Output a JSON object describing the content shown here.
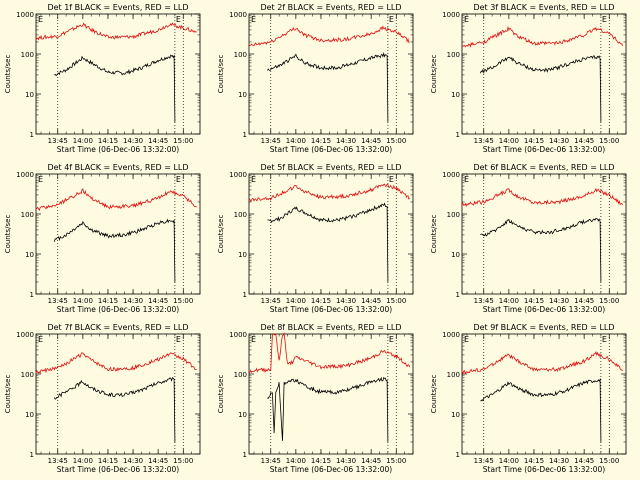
{
  "colors": {
    "background": "#fffbe0",
    "events": "#000000",
    "lld": "#dd1111",
    "axes": "#000000"
  },
  "chart_data": [
    {
      "type": "line",
      "title": "Det 1f BLACK = Events, RED = LLD",
      "xlabel": "Start Time (06-Dec-06 13:32:00)",
      "ylabel": "Counts/sec",
      "x_ticks": [
        "13:45",
        "14:00",
        "14:15",
        "14:30",
        "14:45",
        "15:00"
      ],
      "y_ticks": [
        "1",
        "10",
        "100",
        "1000"
      ],
      "y_scale": "log",
      "ylim": [
        1,
        1000
      ],
      "vlines": [
        "13:45",
        "14:55",
        "15:00"
      ],
      "markers": [
        "E",
        "E"
      ],
      "series": [
        {
          "name": "BLACK = Events",
          "color": "#000000",
          "x": [
            "13:43",
            "13:50",
            "14:00",
            "14:05",
            "14:15",
            "14:25",
            "14:35",
            "14:45",
            "14:53",
            "14:55",
            "14:55"
          ],
          "y": [
            30,
            40,
            80,
            60,
            35,
            33,
            45,
            70,
            90,
            80,
            2
          ]
        },
        {
          "name": "RED = LLD",
          "color": "#dd1111",
          "x": [
            "13:32",
            "13:45",
            "14:00",
            "14:05",
            "14:15",
            "14:30",
            "14:45",
            "14:52",
            "15:00",
            "15:08"
          ],
          "y": [
            250,
            280,
            550,
            400,
            260,
            270,
            400,
            560,
            450,
            350
          ]
        }
      ]
    },
    {
      "type": "line",
      "title": "Det 2f BLACK = Events, RED = LLD",
      "xlabel": "Start Time (06-Dec-06 13:32:00)",
      "ylabel": "Counts/sec",
      "x_ticks": [
        "13:45",
        "14:00",
        "14:15",
        "14:30",
        "14:45",
        "15:00"
      ],
      "y_ticks": [
        "1",
        "10",
        "100",
        "1000"
      ],
      "y_scale": "log",
      "ylim": [
        1,
        1000
      ],
      "vlines": [
        "13:45",
        "14:55",
        "15:00"
      ],
      "markers": [
        "E",
        "E"
      ],
      "series": [
        {
          "name": "BLACK = Events",
          "color": "#000000",
          "x": [
            "13:43",
            "13:50",
            "14:00",
            "14:05",
            "14:15",
            "14:25",
            "14:35",
            "14:45",
            "14:53",
            "14:55",
            "14:55"
          ],
          "y": [
            40,
            50,
            90,
            60,
            45,
            45,
            60,
            80,
            95,
            90,
            2
          ]
        },
        {
          "name": "RED = LLD",
          "color": "#dd1111",
          "x": [
            "13:32",
            "13:45",
            "14:00",
            "14:05",
            "14:15",
            "14:30",
            "14:45",
            "14:52",
            "15:00",
            "15:08"
          ],
          "y": [
            160,
            200,
            450,
            300,
            220,
            230,
            320,
            450,
            350,
            200
          ]
        }
      ]
    },
    {
      "type": "line",
      "title": "Det 3f BLACK = Events, RED = LLD",
      "xlabel": "Start Time (06-Dec-06 13:32:00)",
      "ylabel": "Counts/sec",
      "x_ticks": [
        "13:45",
        "14:00",
        "14:15",
        "14:30",
        "14:45",
        "15:00"
      ],
      "y_ticks": [
        "1",
        "10",
        "100",
        "1000"
      ],
      "y_scale": "log",
      "ylim": [
        1,
        1000
      ],
      "vlines": [
        "13:45",
        "14:55",
        "15:00"
      ],
      "markers": [
        "E",
        "E"
      ],
      "series": [
        {
          "name": "BLACK = Events",
          "color": "#000000",
          "x": [
            "13:43",
            "13:50",
            "14:00",
            "14:05",
            "14:15",
            "14:25",
            "14:35",
            "14:45",
            "14:53",
            "14:55",
            "14:55"
          ],
          "y": [
            35,
            45,
            85,
            60,
            40,
            40,
            55,
            75,
            85,
            80,
            2
          ]
        },
        {
          "name": "RED = LLD",
          "color": "#dd1111",
          "x": [
            "13:32",
            "13:45",
            "14:00",
            "14:05",
            "14:15",
            "14:30",
            "14:45",
            "14:52",
            "15:00",
            "15:08"
          ],
          "y": [
            150,
            200,
            430,
            280,
            180,
            190,
            300,
            440,
            330,
            160
          ]
        }
      ]
    },
    {
      "type": "line",
      "title": "Det 4f BLACK = Events, RED = LLD",
      "xlabel": "Start Time (06-Dec-06 13:32:00)",
      "ylabel": "Counts/sec",
      "x_ticks": [
        "13:45",
        "14:00",
        "14:15",
        "14:30",
        "14:45",
        "15:00"
      ],
      "y_ticks": [
        "1",
        "10",
        "100",
        "1000"
      ],
      "y_scale": "log",
      "ylim": [
        1,
        1000
      ],
      "vlines": [
        "13:45",
        "14:55",
        "15:00"
      ],
      "markers": [
        "E",
        "E"
      ],
      "series": [
        {
          "name": "BLACK = Events",
          "color": "#000000",
          "x": [
            "13:43",
            "13:50",
            "14:00",
            "14:05",
            "14:15",
            "14:25",
            "14:35",
            "14:45",
            "14:53",
            "14:55",
            "14:55"
          ],
          "y": [
            22,
            30,
            60,
            40,
            28,
            30,
            40,
            60,
            70,
            65,
            2
          ]
        },
        {
          "name": "RED = LLD",
          "color": "#dd1111",
          "x": [
            "13:32",
            "13:45",
            "14:00",
            "14:05",
            "14:15",
            "14:30",
            "14:45",
            "14:52",
            "15:00",
            "15:08"
          ],
          "y": [
            130,
            170,
            380,
            250,
            150,
            160,
            250,
            370,
            280,
            150
          ]
        }
      ]
    },
    {
      "type": "line",
      "title": "Det 5f BLACK = Events, RED = LLD",
      "xlabel": "Start Time (06-Dec-06 13:32:00)",
      "ylabel": "Counts/sec",
      "x_ticks": [
        "13:45",
        "14:00",
        "14:15",
        "14:30",
        "14:45",
        "15:00"
      ],
      "y_ticks": [
        "1",
        "10",
        "100",
        "1000"
      ],
      "y_scale": "log",
      "ylim": [
        1,
        1000
      ],
      "vlines": [
        "13:45",
        "14:55",
        "15:00"
      ],
      "markers": [
        "E",
        "E"
      ],
      "series": [
        {
          "name": "BLACK = Events",
          "color": "#000000",
          "x": [
            "13:43",
            "13:50",
            "14:00",
            "14:05",
            "14:15",
            "14:25",
            "14:35",
            "14:45",
            "14:53",
            "14:55",
            "14:55"
          ],
          "y": [
            65,
            75,
            140,
            110,
            70,
            70,
            90,
            130,
            170,
            150,
            2
          ]
        },
        {
          "name": "RED = LLD",
          "color": "#dd1111",
          "x": [
            "13:32",
            "13:45",
            "14:00",
            "14:05",
            "14:15",
            "14:30",
            "14:45",
            "14:52",
            "15:00",
            "15:08"
          ],
          "y": [
            220,
            250,
            480,
            370,
            260,
            280,
            400,
            560,
            440,
            250
          ]
        }
      ]
    },
    {
      "type": "line",
      "title": "Det 6f BLACK = Events, RED = LLD",
      "xlabel": "Start Time (06-Dec-06 13:32:00)",
      "ylabel": "Counts/sec",
      "x_ticks": [
        "13:45",
        "14:00",
        "14:15",
        "14:30",
        "14:45",
        "15:00"
      ],
      "y_ticks": [
        "1",
        "10",
        "100",
        "1000"
      ],
      "y_scale": "log",
      "ylim": [
        1,
        1000
      ],
      "vlines": [
        "13:45",
        "14:55",
        "15:00"
      ],
      "markers": [
        "E",
        "E"
      ],
      "series": [
        {
          "name": "BLACK = Events",
          "color": "#000000",
          "x": [
            "13:43",
            "13:50",
            "14:00",
            "14:05",
            "14:15",
            "14:25",
            "14:35",
            "14:45",
            "14:53",
            "14:55",
            "14:55"
          ],
          "y": [
            28,
            35,
            70,
            50,
            35,
            35,
            45,
            65,
            75,
            70,
            2
          ]
        },
        {
          "name": "RED = LLD",
          "color": "#dd1111",
          "x": [
            "13:32",
            "13:45",
            "14:00",
            "14:05",
            "14:15",
            "14:30",
            "14:45",
            "14:52",
            "15:00",
            "15:08"
          ],
          "y": [
            170,
            200,
            400,
            280,
            190,
            200,
            280,
            400,
            300,
            170
          ]
        }
      ]
    },
    {
      "type": "line",
      "title": "Det 7f BLACK = Events, RED = LLD",
      "xlabel": "Start Time (06-Dec-06 13:32:00)",
      "ylabel": "Counts/sec",
      "x_ticks": [
        "13:45",
        "14:00",
        "14:15",
        "14:30",
        "14:45",
        "15:00"
      ],
      "y_ticks": [
        "1",
        "10",
        "100",
        "1000"
      ],
      "y_scale": "log",
      "ylim": [
        1,
        1000
      ],
      "vlines": [
        "13:45",
        "14:55",
        "15:00"
      ],
      "markers": [
        "E",
        "E"
      ],
      "series": [
        {
          "name": "BLACK = Events",
          "color": "#000000",
          "x": [
            "13:43",
            "13:50",
            "14:00",
            "14:05",
            "14:15",
            "14:25",
            "14:35",
            "14:45",
            "14:53",
            "14:55",
            "14:55"
          ],
          "y": [
            25,
            35,
            65,
            45,
            30,
            30,
            40,
            60,
            75,
            70,
            2
          ]
        },
        {
          "name": "RED = LLD",
          "color": "#dd1111",
          "x": [
            "13:32",
            "13:45",
            "14:00",
            "14:05",
            "14:15",
            "14:30",
            "14:45",
            "14:52",
            "15:00",
            "15:08"
          ],
          "y": [
            110,
            140,
            320,
            220,
            130,
            140,
            230,
            320,
            240,
            130
          ]
        }
      ]
    },
    {
      "type": "line",
      "title": "Det 8f BLACK = Events, RED = LLD",
      "xlabel": "Start Time (06-Dec-06 13:32:00)",
      "ylabel": "Counts/sec",
      "x_ticks": [
        "13:45",
        "14:00",
        "14:15",
        "14:30",
        "14:45",
        "15:00"
      ],
      "y_ticks": [
        "1",
        "10",
        "100",
        "1000"
      ],
      "y_scale": "log",
      "ylim": [
        1,
        1000
      ],
      "vlines": [
        "13:45",
        "14:55",
        "15:00"
      ],
      "markers": [
        "E",
        "E"
      ],
      "series": [
        {
          "name": "BLACK = Events",
          "color": "#000000",
          "x": [
            "13:43",
            "13:46",
            "13:47",
            "13:48",
            "13:50",
            "13:52",
            "13:53",
            "13:55",
            "14:00",
            "14:05",
            "14:15",
            "14:25",
            "14:35",
            "14:45",
            "14:53",
            "14:55",
            "14:55"
          ],
          "y": [
            25,
            35,
            3,
            35,
            60,
            2,
            60,
            65,
            70,
            50,
            35,
            35,
            45,
            65,
            75,
            70,
            2
          ]
        },
        {
          "name": "RED = LLD",
          "color": "#dd1111",
          "x": [
            "13:32",
            "13:45",
            "13:46",
            "13:48",
            "13:50",
            "13:52",
            "13:53",
            "13:55",
            "13:58",
            "14:00",
            "14:05",
            "14:15",
            "14:30",
            "14:45",
            "14:52",
            "15:00",
            "15:08"
          ],
          "y": [
            120,
            130,
            1000,
            1000,
            200,
            1000,
            1000,
            170,
            200,
            260,
            220,
            150,
            160,
            250,
            370,
            280,
            150
          ]
        }
      ]
    },
    {
      "type": "line",
      "title": "Det 9f BLACK = Events, RED = LLD",
      "xlabel": "Start Time (06-Dec-06 13:32:00)",
      "ylabel": "Counts/sec",
      "x_ticks": [
        "13:45",
        "14:00",
        "14:15",
        "14:30",
        "14:45",
        "15:00"
      ],
      "y_ticks": [
        "1",
        "10",
        "100",
        "1000"
      ],
      "y_scale": "log",
      "ylim": [
        1,
        1000
      ],
      "vlines": [
        "13:45",
        "14:55",
        "15:00"
      ],
      "markers": [
        "E",
        "E"
      ],
      "series": [
        {
          "name": "BLACK = Events",
          "color": "#000000",
          "x": [
            "13:43",
            "13:50",
            "14:00",
            "14:05",
            "14:15",
            "14:25",
            "14:35",
            "14:45",
            "14:53",
            "14:55",
            "14:55"
          ],
          "y": [
            22,
            30,
            60,
            45,
            30,
            30,
            40,
            60,
            70,
            65,
            2
          ]
        },
        {
          "name": "RED = LLD",
          "color": "#dd1111",
          "x": [
            "13:32",
            "13:45",
            "14:00",
            "14:05",
            "14:15",
            "14:30",
            "14:45",
            "14:52",
            "15:00",
            "15:08"
          ],
          "y": [
            110,
            130,
            300,
            210,
            130,
            130,
            210,
            320,
            240,
            120
          ]
        }
      ]
    }
  ]
}
